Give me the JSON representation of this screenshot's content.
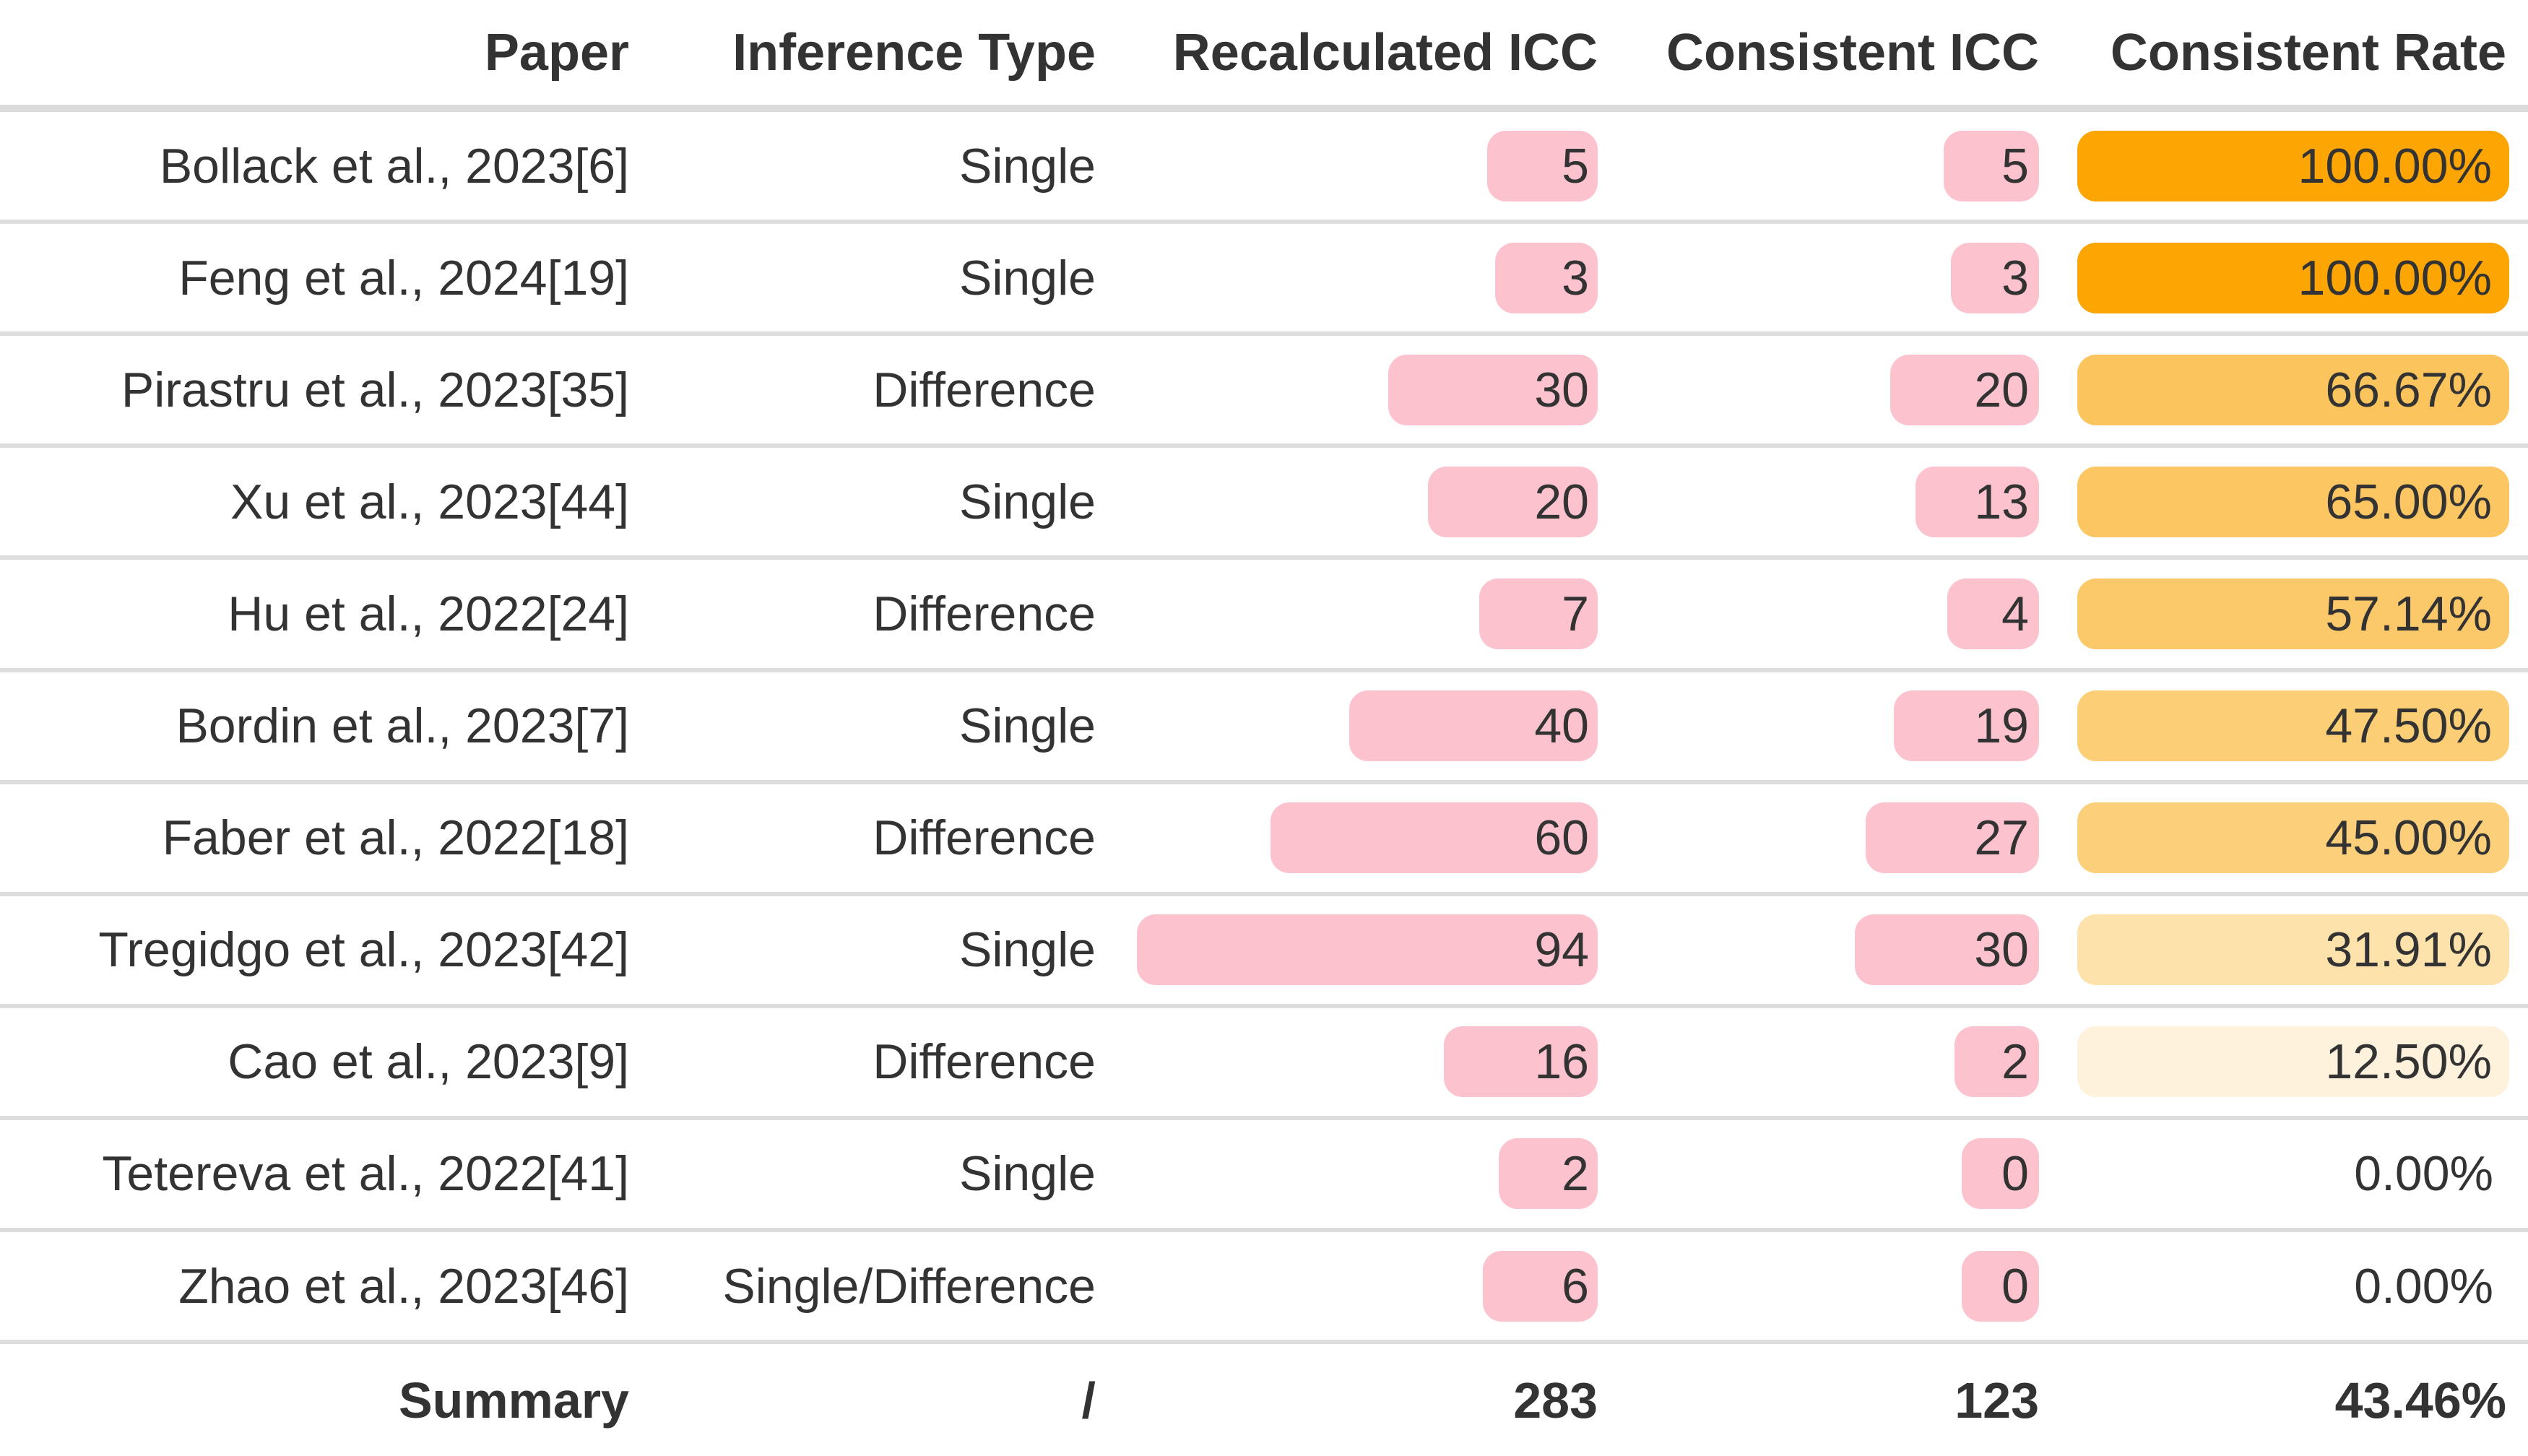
{
  "palette": {
    "icc_bar_pink": "#FCC3CE",
    "rate_orange_full": "#FCA503",
    "row_separator_gray": "#DDDDDD",
    "text_dark": "#333333",
    "background": "#FFFFFF"
  },
  "table": {
    "columns": [
      "Paper",
      "Inference Type",
      "Recalculated ICC",
      "Consistent ICC",
      "Consistent Rate"
    ],
    "rows": [
      {
        "paper": "Bollack et al., 2023[6]",
        "inference": "Single",
        "recalculated": 5,
        "consistent": 5,
        "rate": "100.00%",
        "rate_value": 100.0,
        "rate_color": "#FCA503"
      },
      {
        "paper": "Feng et al., 2024[19]",
        "inference": "Single",
        "recalculated": 3,
        "consistent": 3,
        "rate": "100.00%",
        "rate_value": 100.0,
        "rate_color": "#FCA503"
      },
      {
        "paper": "Pirastru et al., 2023[35]",
        "inference": "Difference",
        "recalculated": 30,
        "consistent": 20,
        "rate": "66.67%",
        "rate_value": 66.67,
        "rate_color": "#FCC45C"
      },
      {
        "paper": "Xu et al., 2023[44]",
        "inference": "Single",
        "recalculated": 20,
        "consistent": 13,
        "rate": "65.00%",
        "rate_value": 65.0,
        "rate_color": "#FCC662"
      },
      {
        "paper": "Hu et al., 2022[24]",
        "inference": "Difference",
        "recalculated": 7,
        "consistent": 4,
        "rate": "57.14%",
        "rate_value": 57.14,
        "rate_color": "#FCC96A"
      },
      {
        "paper": "Bordin et al., 2023[7]",
        "inference": "Single",
        "recalculated": 40,
        "consistent": 19,
        "rate": "47.50%",
        "rate_value": 47.5,
        "rate_color": "#FCCE76"
      },
      {
        "paper": "Faber et al., 2022[18]",
        "inference": "Difference",
        "recalculated": 60,
        "consistent": 27,
        "rate": "45.00%",
        "rate_value": 45.0,
        "rate_color": "#FCD07B"
      },
      {
        "paper": "Tregidgo et al., 2023[42]",
        "inference": "Single",
        "recalculated": 94,
        "consistent": 30,
        "rate": "31.91%",
        "rate_value": 31.91,
        "rate_color": "#FDE2AC"
      },
      {
        "paper": "Cao et al., 2023[9]",
        "inference": "Difference",
        "recalculated": 16,
        "consistent": 2,
        "rate": "12.50%",
        "rate_value": 12.5,
        "rate_color": "#FEF2DD"
      },
      {
        "paper": "Tetereva et al., 2022[41]",
        "inference": "Single",
        "recalculated": 2,
        "consistent": 0,
        "rate": "0.00%",
        "rate_value": 0.0,
        "rate_color": null
      },
      {
        "paper": "Zhao et al., 2023[46]",
        "inference": "Single/Difference",
        "recalculated": 6,
        "consistent": 0,
        "rate": "0.00%",
        "rate_value": 0.0,
        "rate_color": null
      }
    ],
    "summary": {
      "paper": "Summary",
      "inference": "/",
      "recalculated": "283",
      "consistent": "123",
      "rate": "43.46%"
    }
  },
  "chart_data": {
    "type": "table",
    "title": "",
    "columns": [
      "Paper",
      "Inference Type",
      "Recalculated ICC",
      "Consistent ICC",
      "Consistent Rate"
    ],
    "categories": [
      "Bollack et al., 2023[6]",
      "Feng et al., 2024[19]",
      "Pirastru et al., 2023[35]",
      "Xu et al., 2023[44]",
      "Hu et al., 2022[24]",
      "Bordin et al., 2023[7]",
      "Faber et al., 2022[18]",
      "Tregidgo et al., 2023[42]",
      "Cao et al., 2023[9]",
      "Tetereva et al., 2022[41]",
      "Zhao et al., 2023[46]"
    ],
    "series": [
      {
        "name": "Inference Type",
        "values": [
          "Single",
          "Single",
          "Difference",
          "Single",
          "Difference",
          "Single",
          "Difference",
          "Single",
          "Difference",
          "Single",
          "Single/Difference"
        ]
      },
      {
        "name": "Recalculated ICC",
        "values": [
          5,
          3,
          30,
          20,
          7,
          40,
          60,
          94,
          16,
          2,
          6
        ],
        "bar_color": "#FCC3CE",
        "display": "bar"
      },
      {
        "name": "Consistent ICC",
        "values": [
          5,
          3,
          20,
          13,
          4,
          19,
          27,
          30,
          2,
          0,
          0
        ],
        "bar_color": "#FCC3CE",
        "display": "bar"
      },
      {
        "name": "Consistent Rate",
        "values": [
          100.0,
          100.0,
          66.67,
          65.0,
          57.14,
          47.5,
          45.0,
          31.91,
          12.5,
          0.0,
          0.0
        ],
        "display": "heat-cell",
        "colormap": [
          "#FEF2DD",
          "#FCA503"
        ]
      }
    ],
    "summary_row": {
      "Paper": "Summary",
      "Inference Type": "/",
      "Recalculated ICC": 283,
      "Consistent ICC": 123,
      "Consistent Rate": "43.46%"
    },
    "layout": {
      "grid": "horizontal row separators",
      "legend": "none",
      "value_alignment": "right"
    }
  }
}
